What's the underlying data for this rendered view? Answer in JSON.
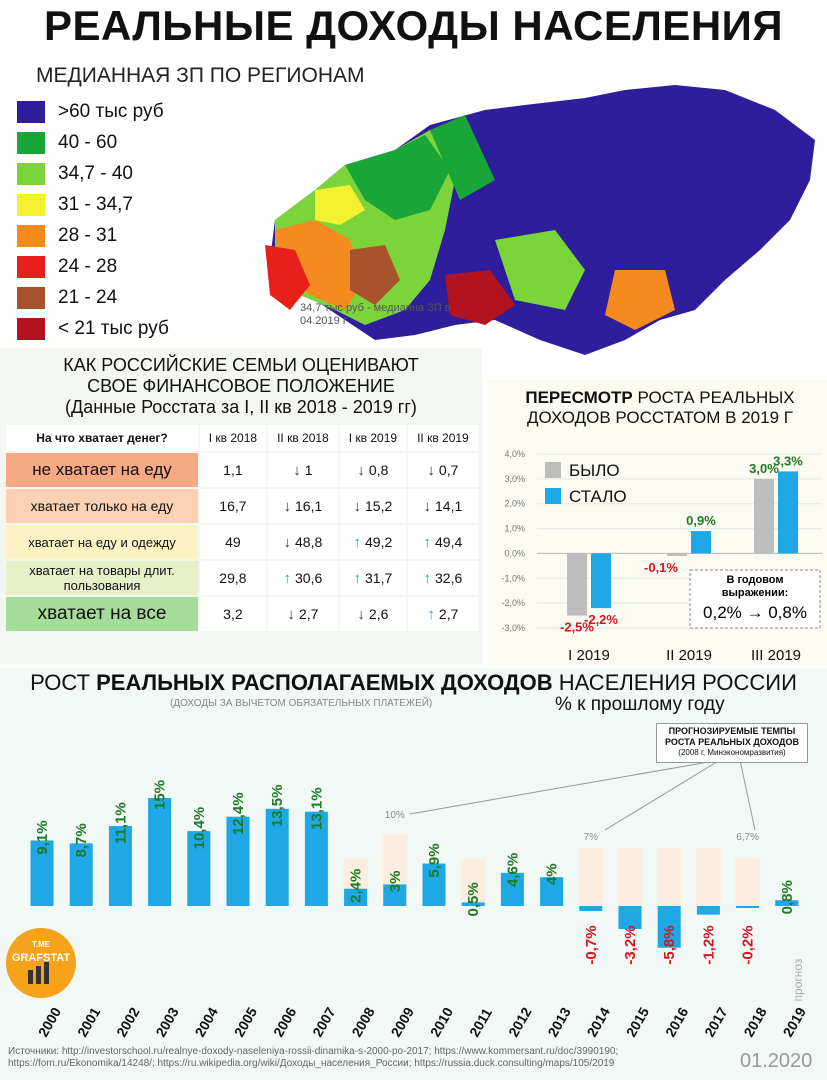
{
  "title": "РЕАЛЬНЫЕ ДОХОДЫ НАСЕЛЕНИЯ",
  "map": {
    "subtitle": "МЕДИАННАЯ ЗП ПО РЕГИОНАМ",
    "legend": [
      {
        "label": ">60 тыс руб",
        "color": "#2e1e9c"
      },
      {
        "label": "40 - 60",
        "color": "#1aa538"
      },
      {
        "label": "34,7 - 40",
        "color": "#7bd43a"
      },
      {
        "label": "31 - 34,7",
        "color": "#f4f130"
      },
      {
        "label": "28 - 31",
        "color": "#f58a1e"
      },
      {
        "label": "24 - 28",
        "color": "#e8201c"
      },
      {
        "label": "21 - 24",
        "color": "#a8522e"
      },
      {
        "label": "< 21 тыс руб",
        "color": "#b3121f"
      }
    ],
    "note": "34,7 тыс руб - медианна ЗП в 04.2019 г"
  },
  "families": {
    "title_line1": "КАК РОССИЙСКИЕ СЕМЬИ ОЦЕНИВАЮТ",
    "title_line2": "СВОЕ ФИНАНСОВОЕ ПОЛОЖЕНИЕ",
    "title_line3": "(Данные Росстата за I, II кв 2018 - 2019 гг)",
    "headers": [
      "На что хватает денег?",
      "I кв 2018",
      "II кв 2018",
      "I кв 2019",
      "II кв 2019"
    ],
    "rows": [
      {
        "label": "не хватает на еду",
        "color": "#f6a982",
        "values": [
          "1,1",
          "1",
          "0,8",
          "0,7"
        ],
        "arrows": [
          "",
          "dn",
          "dn",
          "dn"
        ]
      },
      {
        "label": "хватает только на еду",
        "color": "#fbd0b3",
        "values": [
          "16,7",
          "16,1",
          "15,2",
          "14,1"
        ],
        "arrows": [
          "",
          "dn",
          "dn",
          "dn"
        ]
      },
      {
        "label": "хватает на еду и одежду",
        "color": "#fdf2c4",
        "values": [
          "49",
          "48,8",
          "49,2",
          "49,4"
        ],
        "arrows": [
          "",
          "dn",
          "up",
          "up"
        ]
      },
      {
        "label": "хватает на товары длит. пользования",
        "color": "#e7f0c9",
        "values": [
          "29,8",
          "30,6",
          "31,7",
          "32,6"
        ],
        "arrows": [
          "",
          "up",
          "up",
          "up"
        ]
      },
      {
        "label": "хватает на все",
        "color": "#a6dc99",
        "values": [
          "3,2",
          "2,7",
          "2,6",
          "2,7"
        ],
        "arrows": [
          "",
          "dn",
          "dn",
          "up"
        ]
      }
    ],
    "arrow_up": "↑",
    "arrow_down": "↓"
  },
  "revision": {
    "title_bold": "ПЕРЕСМОТР",
    "title_rest": " РОСТА РЕАЛЬНЫХ",
    "title_line2": "ДОХОДОВ РОССТАТОМ В 2019 Г",
    "annual_label_1": "В годовом",
    "annual_label_2": "выражении:",
    "annual_value": "0,2% → 0,8%"
  },
  "growth": {
    "title_pre": "РОСТ ",
    "title_bold": "РЕАЛЬНЫХ РАСПОЛАГАЕМЫХ ДОХОДОВ",
    "title_post": " НАСЕЛЕНИЯ РОССИИ",
    "note": "(ДОХОДЫ ЗА ВЫЧЕТОМ ОБЯЗАТЕЛЬНЫХ ПЛАТЕЖЕЙ)",
    "unit": "% к прошлому году",
    "forecast_line1": "ПРОГНОЗИРУЕМЫЕ ТЕМПЫ",
    "forecast_line2": "РОСТА РЕАЛЬНЫХ ДОХОДОВ",
    "forecast_line3": "(2008 г, Минэкономразвития)",
    "prognoz": "прогноз"
  },
  "chart_data": [
    {
      "type": "bar",
      "title": "ПЕРЕСМОТР РОСТА РЕАЛЬНЫХ ДОХОДОВ РОССТАТОМ В 2019 Г",
      "categories": [
        "I 2019",
        "II 2019",
        "III 2019"
      ],
      "series": [
        {
          "name": "БЫЛО",
          "color": "#bdbdbd",
          "values": [
            -2.5,
            -0.1,
            3.0
          ],
          "labels": [
            "-2,5%",
            "-0,1%",
            "3,0%"
          ]
        },
        {
          "name": "СТАЛО",
          "color": "#1fa8e6",
          "values": [
            -2.2,
            0.9,
            3.3
          ],
          "labels": [
            "-2,2%",
            "0,9%",
            "3,3%"
          ]
        }
      ],
      "ylim": [
        -3.0,
        4.0
      ],
      "yticks": [
        "4,0%",
        "3,0%",
        "2,0%",
        "1,0%",
        "0,0%",
        "-1,0%",
        "-2,0%",
        "-3,0%"
      ],
      "ytick_values": [
        4,
        3,
        2,
        1,
        0,
        -1,
        -2,
        -3
      ],
      "legend_position": "top-left"
    },
    {
      "type": "bar",
      "title": "РОСТ РЕАЛЬНЫХ РАСПОЛАГАЕМЫХ ДОХОДОВ НАСЕЛЕНИЯ РОССИИ",
      "categories": [
        "2000",
        "2001",
        "2002",
        "2003",
        "2004",
        "2005",
        "2006",
        "2007",
        "2008",
        "2009",
        "2010",
        "2011",
        "2012",
        "2013",
        "2014",
        "2015",
        "2016",
        "2017",
        "2018",
        "2019"
      ],
      "values": [
        9.1,
        8.7,
        11.1,
        15,
        10.4,
        12.4,
        13.5,
        13.1,
        2.4,
        3,
        5.9,
        0.5,
        4.6,
        4,
        -0.7,
        -3.2,
        -5.8,
        -1.2,
        -0.2,
        0.8
      ],
      "labels": [
        "9,1%",
        "8,7%",
        "11,1%",
        "15%",
        "10,4%",
        "12,4%",
        "13,5%",
        "13,1%",
        "2,4%",
        "3%",
        "5,9%",
        "0,5%",
        "4,6%",
        "4%",
        "-0,7%",
        "-3,2%",
        "-5,8%",
        "-1,2%",
        "-0,2%",
        "0,8%"
      ],
      "forecast": [
        null,
        null,
        null,
        null,
        null,
        null,
        null,
        null,
        6.5,
        10,
        null,
        6.5,
        null,
        null,
        7,
        7,
        7,
        7,
        6.7,
        null
      ],
      "forecast_labels": {
        "9": "10%",
        "14": "7%",
        "18": "6,7%"
      },
      "bar_color": "#1fa8e6",
      "forecast_color": "#fbeee0"
    }
  ],
  "footer": {
    "sources": "Источники: http://investorschool.ru/realnye-doxody-naseleniya-rossii-dinamika-s-2000-po-2017; https://www.kommersant.ru/doc/3990190; https://fom.ru/Ekonomika/14248/; https://ru.wikipedia.org/wiki/Доходы_населения_России; https://russia.duck.consulting/maps/105/2019",
    "date": "01.2020",
    "badge_top": "T.ME",
    "badge_text": "GRAFSTAT"
  }
}
